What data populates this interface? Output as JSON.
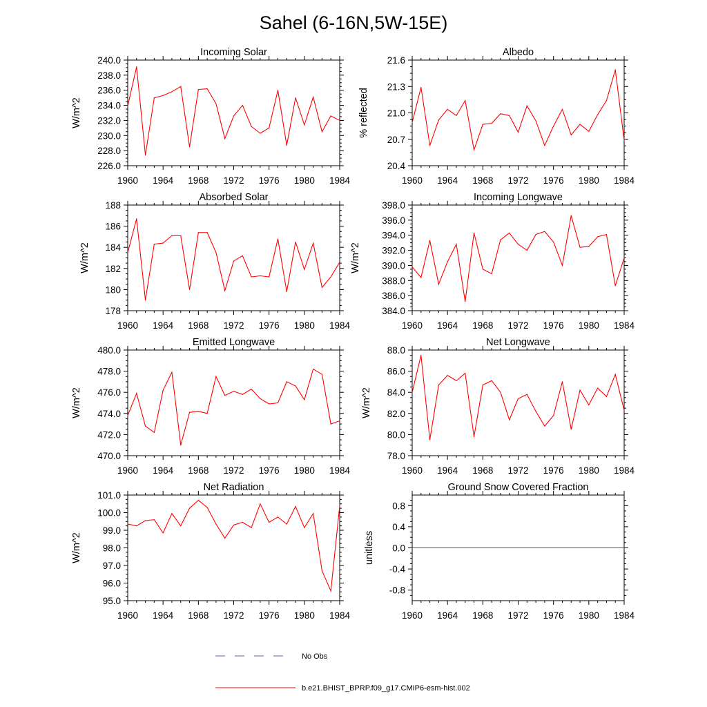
{
  "title": "Sahel (6-16N,5W-15E)",
  "colors": {
    "series": "#ff0000",
    "obs": "#5a5aa8",
    "axis": "#000000"
  },
  "legend": {
    "obs_label": "No Obs",
    "model_label": "b.e21.BHIST_BPRP.f09_g17.CMIP6-esm-hist.002"
  },
  "chart_data": [
    {
      "type": "line",
      "title": "Incoming Solar",
      "xlabel": "",
      "ylabel": "W/m^2",
      "xlim": [
        1960,
        1984
      ],
      "ylim": [
        226,
        240
      ],
      "xticks": [
        1960,
        1964,
        1968,
        1972,
        1976,
        1980,
        1984
      ],
      "yticks": [
        226,
        228,
        230,
        232,
        234,
        236,
        238,
        240
      ],
      "ytick_labels": [
        "226.0",
        "228.0",
        "230.0",
        "232.0",
        "234.0",
        "236.0",
        "238.0",
        "240.0"
      ],
      "x": [
        1960,
        1961,
        1962,
        1963,
        1964,
        1965,
        1966,
        1967,
        1968,
        1969,
        1970,
        1971,
        1972,
        1973,
        1974,
        1975,
        1976,
        1977,
        1978,
        1979,
        1980,
        1981,
        1982,
        1983,
        1984
      ],
      "values": [
        233.9,
        239.1,
        227.4,
        235.0,
        235.3,
        235.8,
        236.5,
        228.5,
        236.1,
        236.2,
        234.2,
        229.6,
        232.6,
        234.0,
        231.2,
        230.3,
        231.0,
        236.0,
        228.7,
        235.0,
        231.4,
        235.1,
        230.5,
        232.6,
        232.0
      ]
    },
    {
      "type": "line",
      "title": "Albedo",
      "xlabel": "",
      "ylabel": "% reflected",
      "xlim": [
        1960,
        1984
      ],
      "ylim": [
        20.4,
        21.6
      ],
      "xticks": [
        1960,
        1964,
        1968,
        1972,
        1976,
        1980,
        1984
      ],
      "yticks": [
        20.4,
        20.7,
        21.0,
        21.3,
        21.6
      ],
      "ytick_labels": [
        "20.4",
        "20.7",
        "21.0",
        "21.3",
        "21.6"
      ],
      "x": [
        1960,
        1961,
        1962,
        1963,
        1964,
        1965,
        1966,
        1967,
        1968,
        1969,
        1970,
        1971,
        1972,
        1973,
        1974,
        1975,
        1976,
        1977,
        1978,
        1979,
        1980,
        1981,
        1982,
        1983,
        1984
      ],
      "values": [
        20.89,
        21.29,
        20.63,
        20.92,
        21.04,
        20.97,
        21.14,
        20.58,
        20.87,
        20.88,
        20.99,
        20.97,
        20.78,
        21.08,
        20.91,
        20.63,
        20.85,
        21.04,
        20.75,
        20.87,
        20.79,
        20.98,
        21.14,
        21.49,
        20.69
      ]
    },
    {
      "type": "line",
      "title": "Absorbed Solar",
      "xlabel": "",
      "ylabel": "W/m^2",
      "xlim": [
        1960,
        1984
      ],
      "ylim": [
        178,
        188
      ],
      "xticks": [
        1960,
        1964,
        1968,
        1972,
        1976,
        1980,
        1984
      ],
      "yticks": [
        178,
        180,
        182,
        184,
        186,
        188
      ],
      "ytick_labels": [
        "178",
        "180",
        "182",
        "184",
        "186",
        "188"
      ],
      "x": [
        1960,
        1961,
        1962,
        1963,
        1964,
        1965,
        1966,
        1967,
        1968,
        1969,
        1970,
        1971,
        1972,
        1973,
        1974,
        1975,
        1976,
        1977,
        1978,
        1979,
        1980,
        1981,
        1982,
        1983,
        1984
      ],
      "values": [
        183.5,
        186.7,
        179.0,
        184.3,
        184.4,
        185.1,
        185.1,
        180.0,
        185.4,
        185.4,
        183.5,
        179.9,
        182.7,
        183.2,
        181.2,
        181.3,
        181.2,
        184.8,
        179.8,
        184.5,
        181.9,
        184.4,
        180.2,
        181.2,
        182.6
      ]
    },
    {
      "type": "line",
      "title": "Incoming Longwave",
      "xlabel": "",
      "ylabel": "W/m^2",
      "xlim": [
        1960,
        1984
      ],
      "ylim": [
        384,
        398
      ],
      "xticks": [
        1960,
        1964,
        1968,
        1972,
        1976,
        1980,
        1984
      ],
      "yticks": [
        384,
        386,
        388,
        390,
        392,
        394,
        396,
        398
      ],
      "ytick_labels": [
        "384.0",
        "386.0",
        "388.0",
        "390.0",
        "392.0",
        "394.0",
        "396.0",
        "398.0"
      ],
      "x": [
        1960,
        1961,
        1962,
        1963,
        1964,
        1965,
        1966,
        1967,
        1968,
        1969,
        1970,
        1971,
        1972,
        1973,
        1974,
        1975,
        1976,
        1977,
        1978,
        1979,
        1980,
        1981,
        1982,
        1983,
        1984
      ],
      "values": [
        389.8,
        388.4,
        393.3,
        387.5,
        390.5,
        392.8,
        385.2,
        394.3,
        389.5,
        388.9,
        393.4,
        394.3,
        392.8,
        392.0,
        394.1,
        394.5,
        393.1,
        390.0,
        396.6,
        392.4,
        392.5,
        393.8,
        394.1,
        387.3,
        391.0
      ]
    },
    {
      "type": "line",
      "title": "Emitted Longwave",
      "xlabel": "",
      "ylabel": "W/m^2",
      "xlim": [
        1960,
        1984
      ],
      "ylim": [
        470,
        480
      ],
      "xticks": [
        1960,
        1964,
        1968,
        1972,
        1976,
        1980,
        1984
      ],
      "yticks": [
        470,
        472,
        474,
        476,
        478,
        480
      ],
      "ytick_labels": [
        "470.0",
        "472.0",
        "474.0",
        "476.0",
        "478.0",
        "480.0"
      ],
      "x": [
        1960,
        1961,
        1962,
        1963,
        1964,
        1965,
        1966,
        1967,
        1968,
        1969,
        1970,
        1971,
        1972,
        1973,
        1974,
        1975,
        1976,
        1977,
        1978,
        1979,
        1980,
        1981,
        1982,
        1983,
        1984
      ],
      "values": [
        473.8,
        475.9,
        472.8,
        472.2,
        476.2,
        477.9,
        471.0,
        474.1,
        474.2,
        474.0,
        477.5,
        475.7,
        476.1,
        475.8,
        476.3,
        475.4,
        474.9,
        475.0,
        477.0,
        476.6,
        475.3,
        478.2,
        477.7,
        473.0,
        473.3
      ]
    },
    {
      "type": "line",
      "title": "Net Longwave",
      "xlabel": "",
      "ylabel": "W/m^2",
      "xlim": [
        1960,
        1984
      ],
      "ylim": [
        78,
        88
      ],
      "xticks": [
        1960,
        1964,
        1968,
        1972,
        1976,
        1980,
        1984
      ],
      "yticks": [
        78,
        80,
        82,
        84,
        86,
        88
      ],
      "ytick_labels": [
        "78.0",
        "80.0",
        "82.0",
        "84.0",
        "86.0",
        "88.0"
      ],
      "x": [
        1960,
        1961,
        1962,
        1963,
        1964,
        1965,
        1966,
        1967,
        1968,
        1969,
        1970,
        1971,
        1972,
        1973,
        1974,
        1975,
        1976,
        1977,
        1978,
        1979,
        1980,
        1981,
        1982,
        1983,
        1984
      ],
      "values": [
        84.0,
        87.5,
        79.5,
        84.7,
        85.6,
        85.1,
        85.8,
        79.8,
        84.7,
        85.1,
        84.0,
        81.4,
        83.4,
        83.8,
        82.2,
        80.8,
        81.8,
        85.0,
        80.5,
        84.2,
        82.8,
        84.4,
        83.6,
        85.7,
        82.3
      ]
    },
    {
      "type": "line",
      "title": "Net Radiation",
      "xlabel": "",
      "ylabel": "W/m^2",
      "xlim": [
        1960,
        1984
      ],
      "ylim": [
        95,
        101
      ],
      "xticks": [
        1960,
        1964,
        1968,
        1972,
        1976,
        1980,
        1984
      ],
      "yticks": [
        95,
        96,
        97,
        98,
        99,
        100,
        101
      ],
      "ytick_labels": [
        "95.0",
        "96.0",
        "97.0",
        "98.0",
        "99.0",
        "100.0",
        "101.0"
      ],
      "x": [
        1960,
        1961,
        1962,
        1963,
        1964,
        1965,
        1966,
        1967,
        1968,
        1969,
        1970,
        1971,
        1972,
        1973,
        1974,
        1975,
        1976,
        1977,
        1978,
        1979,
        1980,
        1981,
        1982,
        1983,
        1984
      ],
      "values": [
        99.35,
        99.25,
        99.55,
        99.6,
        98.85,
        99.95,
        99.25,
        100.25,
        100.7,
        100.3,
        99.35,
        98.55,
        99.3,
        99.45,
        99.15,
        100.5,
        99.45,
        99.75,
        99.35,
        100.35,
        99.15,
        99.95,
        96.7,
        95.55,
        100.4
      ]
    },
    {
      "type": "line",
      "title": "Ground Snow Covered Fraction",
      "xlabel": "",
      "ylabel": "unitless",
      "xlim": [
        1960,
        1984
      ],
      "ylim": [
        -1.0,
        1.0
      ],
      "xticks": [
        1960,
        1964,
        1968,
        1972,
        1976,
        1980,
        1984
      ],
      "yticks": [
        -0.8,
        -0.4,
        0.0,
        0.4,
        0.8
      ],
      "ytick_labels": [
        "-0.8",
        "-0.4",
        "0.0",
        "0.4",
        "0.8"
      ],
      "x": [
        1960,
        1961,
        1962,
        1963,
        1964,
        1965,
        1966,
        1967,
        1968,
        1969,
        1970,
        1971,
        1972,
        1973,
        1974,
        1975,
        1976,
        1977,
        1978,
        1979,
        1980,
        1981,
        1982,
        1983,
        1984
      ],
      "values": [
        0,
        0,
        0,
        0,
        0,
        0,
        0,
        0,
        0,
        0,
        0,
        0,
        0,
        0,
        0,
        0,
        0,
        0,
        0,
        0,
        0,
        0,
        0,
        0,
        0
      ]
    }
  ]
}
